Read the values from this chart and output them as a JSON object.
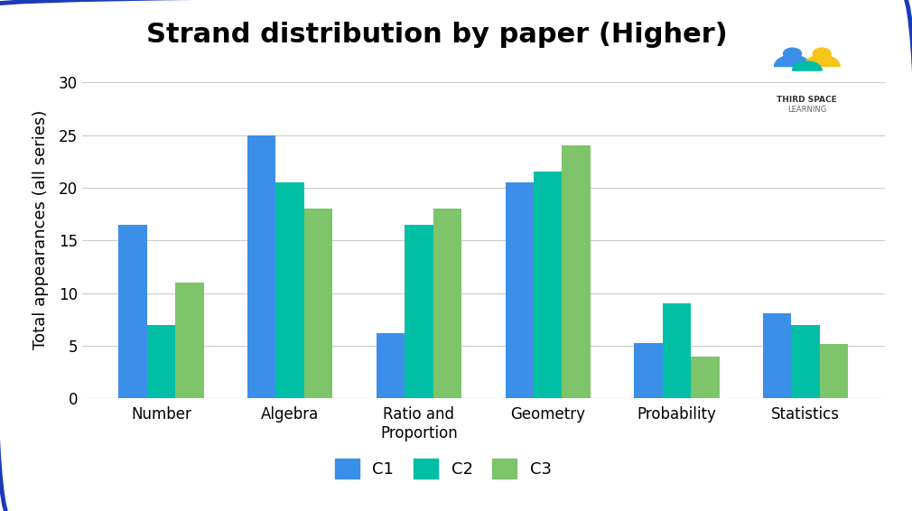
{
  "title": "Strand distribution by paper (Higher)",
  "ylabel": "Total appearances (all series)",
  "categories": [
    "Number",
    "Algebra",
    "Ratio and\nProportion",
    "Geometry",
    "Probability",
    "Statistics"
  ],
  "series": {
    "C1": [
      16.5,
      25,
      6.2,
      20.5,
      5.3,
      8.1
    ],
    "C2": [
      7,
      20.5,
      16.5,
      21.5,
      9,
      7
    ],
    "C3": [
      11,
      18,
      18,
      24,
      4,
      5.2
    ]
  },
  "colors": {
    "C1": "#3B8FE8",
    "C2": "#00BFA5",
    "C3": "#7DC46A"
  },
  "ylim": [
    0,
    32
  ],
  "yticks": [
    0,
    5,
    10,
    15,
    20,
    25,
    30
  ],
  "background_color": "#FFFFFF",
  "border_color": "#1A3BB8",
  "title_fontsize": 22,
  "legend_fontsize": 13,
  "tick_fontsize": 12,
  "ylabel_fontsize": 13,
  "bar_width": 0.22,
  "grid_color": "#CCCCCC"
}
